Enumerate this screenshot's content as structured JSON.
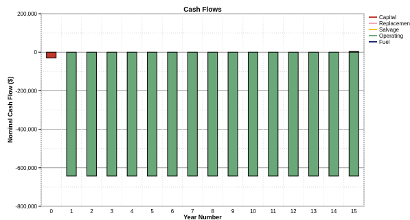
{
  "chart_data": {
    "type": "bar",
    "title": "Cash Flows",
    "xlabel": "Year Number",
    "ylabel": "Nominal Cash Flow ($)",
    "ylim": [
      -800000,
      200000
    ],
    "yticks": [
      200000,
      0,
      -200000,
      -400000,
      -600000,
      -800000
    ],
    "ytick_labels": [
      "200,000",
      "0",
      "-200,000",
      "-400,000",
      "-600,000",
      "-800,000"
    ],
    "categories": [
      "0",
      "1",
      "2",
      "3",
      "4",
      "5",
      "6",
      "7",
      "8",
      "9",
      "10",
      "11",
      "12",
      "13",
      "14",
      "15"
    ],
    "series": [
      {
        "name": "Capital",
        "color": "#c0392b",
        "values": [
          -30000,
          0,
          0,
          0,
          0,
          0,
          0,
          0,
          0,
          0,
          0,
          0,
          0,
          0,
          0,
          0
        ]
      },
      {
        "name": "Replacement",
        "color": "#f4a6b8",
        "values": [
          0,
          0,
          0,
          0,
          0,
          0,
          0,
          0,
          0,
          0,
          0,
          0,
          0,
          0,
          0,
          0
        ]
      },
      {
        "name": "Salvage",
        "color": "#f5c400",
        "values": [
          0,
          0,
          0,
          0,
          0,
          0,
          0,
          0,
          0,
          0,
          0,
          0,
          0,
          0,
          0,
          4000
        ]
      },
      {
        "name": "Operating",
        "color": "#6aa87a",
        "values": [
          0,
          -643000,
          -643000,
          -643000,
          -643000,
          -643000,
          -643000,
          -643000,
          -643000,
          -643000,
          -643000,
          -643000,
          -643000,
          -643000,
          -643000,
          -643000
        ]
      },
      {
        "name": "Fuel",
        "color": "#1f2a6e",
        "values": [
          0,
          0,
          0,
          0,
          0,
          0,
          0,
          0,
          0,
          0,
          0,
          0,
          0,
          0,
          0,
          0
        ]
      }
    ],
    "legend": {
      "position": "top-right",
      "labels": [
        "Capital",
        "Replacemen",
        "Salvage",
        "Operating",
        "Fuel"
      ]
    },
    "grid": true
  }
}
